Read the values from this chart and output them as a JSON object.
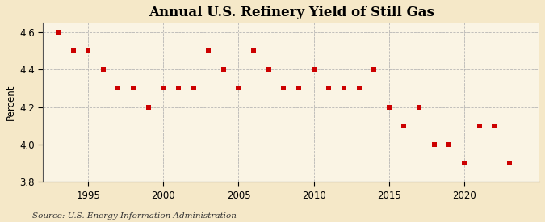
{
  "title": "Annual U.S. Refinery Yield of Still Gas",
  "ylabel": "Percent",
  "source": "Source: U.S. Energy Information Administration",
  "background_color": "#f5e8c8",
  "plot_background_color": "#faf4e4",
  "grid_color": "#b0b0b0",
  "marker_color": "#cc0000",
  "years": [
    1993,
    1994,
    1995,
    1996,
    1997,
    1998,
    1999,
    2000,
    2001,
    2002,
    2003,
    2004,
    2005,
    2006,
    2007,
    2008,
    2009,
    2010,
    2011,
    2012,
    2013,
    2014,
    2015,
    2016,
    2017,
    2018,
    2019,
    2020,
    2021,
    2022,
    2023
  ],
  "values": [
    4.6,
    4.5,
    4.5,
    4.4,
    4.3,
    4.3,
    4.2,
    4.3,
    4.3,
    4.3,
    4.5,
    4.4,
    4.3,
    4.5,
    4.4,
    4.3,
    4.3,
    4.4,
    4.3,
    4.3,
    4.3,
    4.4,
    4.2,
    4.1,
    4.2,
    4.0,
    4.0,
    3.9,
    4.1,
    4.1,
    3.9
  ],
  "xlim": [
    1992.0,
    2025.0
  ],
  "ylim": [
    3.8,
    4.65
  ],
  "yticks": [
    3.8,
    4.0,
    4.2,
    4.4,
    4.6
  ],
  "xticks": [
    1995,
    2000,
    2005,
    2010,
    2015,
    2020
  ],
  "title_fontsize": 12,
  "label_fontsize": 8.5,
  "source_fontsize": 7.5,
  "marker_size": 18
}
